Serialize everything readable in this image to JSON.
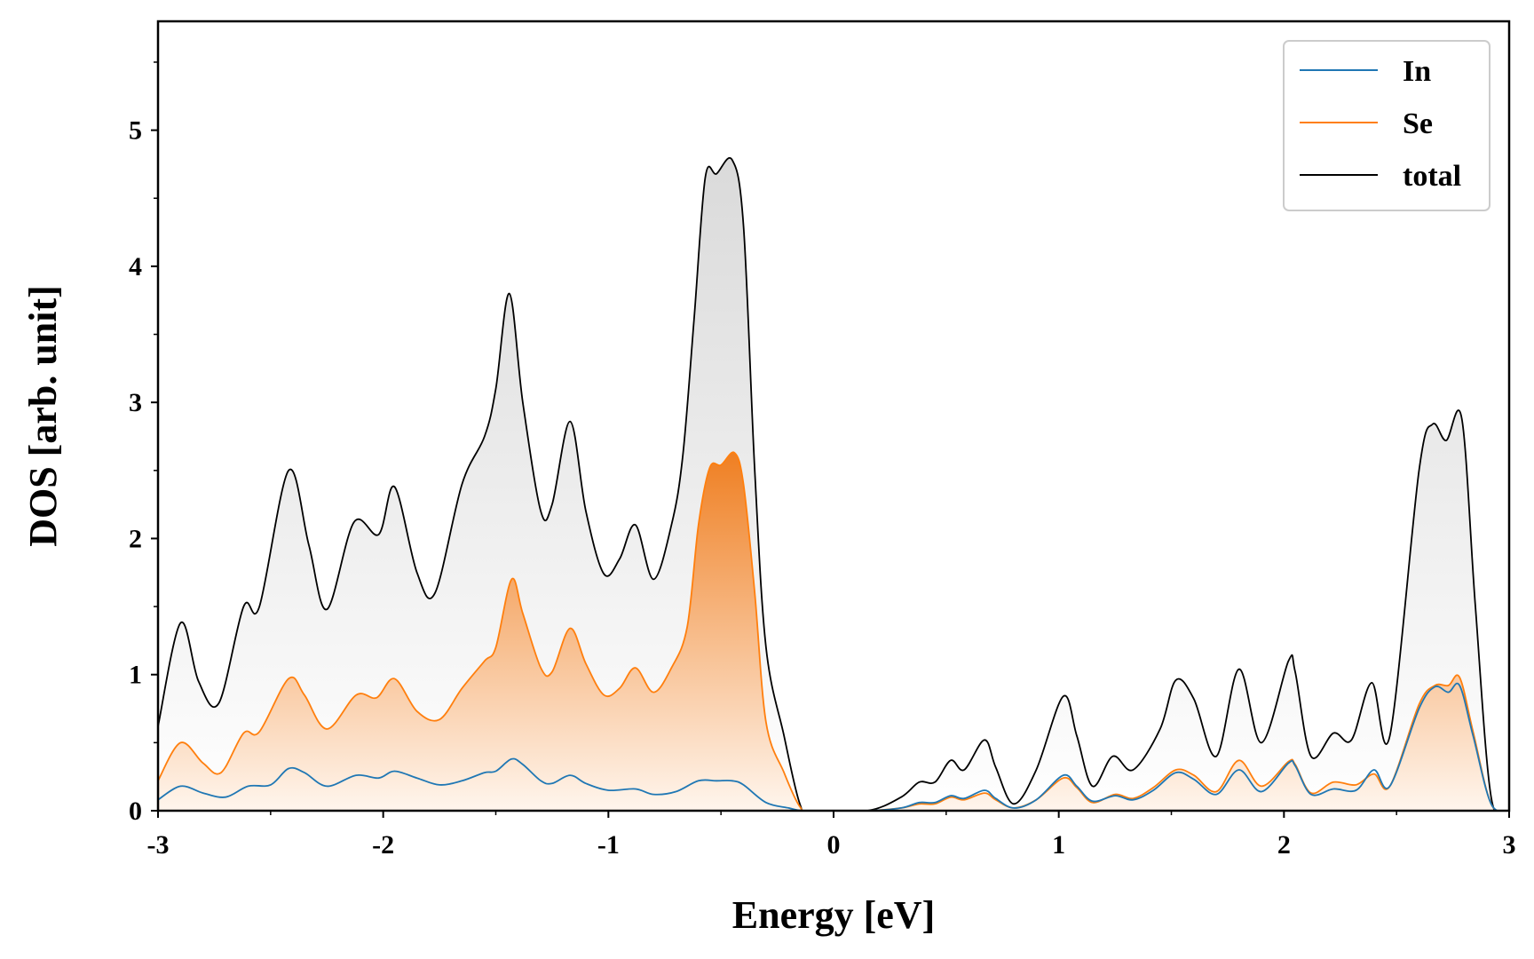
{
  "chart_data": {
    "type": "area",
    "title": "",
    "xlabel": "Energy [eV]",
    "ylabel": "DOS [arb. unit]",
    "xlim": [
      -3,
      3
    ],
    "ylim": [
      0,
      5.8
    ],
    "xticks": [
      -3,
      -2,
      -1,
      0,
      1,
      2,
      3
    ],
    "xtick_labels": [
      "-3",
      "-2",
      "-1",
      "0",
      "1",
      "2",
      "3"
    ],
    "yticks": [
      0,
      1,
      2,
      3,
      4,
      5
    ],
    "ytick_labels": [
      "0",
      "1",
      "2",
      "3",
      "4",
      "5"
    ],
    "grid": false,
    "legend_position": "top-right",
    "series": [
      {
        "name": "In",
        "color": "#1f77b4",
        "points": [
          [
            -3.0,
            0.08
          ],
          [
            -2.9,
            0.18
          ],
          [
            -2.8,
            0.13
          ],
          [
            -2.7,
            0.1
          ],
          [
            -2.6,
            0.18
          ],
          [
            -2.5,
            0.19
          ],
          [
            -2.42,
            0.31
          ],
          [
            -2.35,
            0.28
          ],
          [
            -2.25,
            0.18
          ],
          [
            -2.12,
            0.26
          ],
          [
            -2.02,
            0.24
          ],
          [
            -1.95,
            0.29
          ],
          [
            -1.85,
            0.24
          ],
          [
            -1.75,
            0.19
          ],
          [
            -1.65,
            0.22
          ],
          [
            -1.55,
            0.28
          ],
          [
            -1.5,
            0.29
          ],
          [
            -1.43,
            0.38
          ],
          [
            -1.38,
            0.34
          ],
          [
            -1.3,
            0.22
          ],
          [
            -1.25,
            0.2
          ],
          [
            -1.17,
            0.26
          ],
          [
            -1.1,
            0.2
          ],
          [
            -1.0,
            0.15
          ],
          [
            -0.88,
            0.16
          ],
          [
            -0.8,
            0.12
          ],
          [
            -0.7,
            0.14
          ],
          [
            -0.6,
            0.22
          ],
          [
            -0.52,
            0.22
          ],
          [
            -0.45,
            0.22
          ],
          [
            -0.4,
            0.19
          ],
          [
            -0.3,
            0.06
          ],
          [
            -0.2,
            0.02
          ],
          [
            -0.12,
            0.0
          ],
          [
            0.15,
            0.0
          ],
          [
            0.3,
            0.02
          ],
          [
            0.38,
            0.06
          ],
          [
            0.45,
            0.06
          ],
          [
            0.52,
            0.11
          ],
          [
            0.58,
            0.09
          ],
          [
            0.67,
            0.15
          ],
          [
            0.72,
            0.09
          ],
          [
            0.8,
            0.02
          ],
          [
            0.9,
            0.08
          ],
          [
            1.02,
            0.26
          ],
          [
            1.08,
            0.18
          ],
          [
            1.15,
            0.07
          ],
          [
            1.25,
            0.11
          ],
          [
            1.33,
            0.08
          ],
          [
            1.42,
            0.15
          ],
          [
            1.52,
            0.28
          ],
          [
            1.6,
            0.23
          ],
          [
            1.7,
            0.12
          ],
          [
            1.8,
            0.3
          ],
          [
            1.9,
            0.14
          ],
          [
            2.02,
            0.35
          ],
          [
            2.05,
            0.33
          ],
          [
            2.12,
            0.12
          ],
          [
            2.22,
            0.16
          ],
          [
            2.32,
            0.15
          ],
          [
            2.4,
            0.3
          ],
          [
            2.47,
            0.18
          ],
          [
            2.6,
            0.75
          ],
          [
            2.67,
            0.91
          ],
          [
            2.73,
            0.87
          ],
          [
            2.78,
            0.92
          ],
          [
            2.84,
            0.55
          ],
          [
            2.92,
            0.05
          ],
          [
            3.0,
            0.0
          ]
        ]
      },
      {
        "name": "Se",
        "color": "#ff7f0e",
        "points": [
          [
            -3.0,
            0.22
          ],
          [
            -2.9,
            0.5
          ],
          [
            -2.8,
            0.35
          ],
          [
            -2.72,
            0.28
          ],
          [
            -2.62,
            0.57
          ],
          [
            -2.55,
            0.58
          ],
          [
            -2.42,
            0.97
          ],
          [
            -2.35,
            0.85
          ],
          [
            -2.25,
            0.6
          ],
          [
            -2.12,
            0.85
          ],
          [
            -2.03,
            0.83
          ],
          [
            -1.95,
            0.97
          ],
          [
            -1.85,
            0.73
          ],
          [
            -1.75,
            0.67
          ],
          [
            -1.65,
            0.9
          ],
          [
            -1.55,
            1.1
          ],
          [
            -1.5,
            1.2
          ],
          [
            -1.43,
            1.7
          ],
          [
            -1.38,
            1.45
          ],
          [
            -1.3,
            1.05
          ],
          [
            -1.25,
            1.02
          ],
          [
            -1.17,
            1.34
          ],
          [
            -1.1,
            1.08
          ],
          [
            -1.02,
            0.85
          ],
          [
            -0.95,
            0.9
          ],
          [
            -0.88,
            1.05
          ],
          [
            -0.8,
            0.87
          ],
          [
            -0.72,
            1.05
          ],
          [
            -0.65,
            1.35
          ],
          [
            -0.6,
            2.1
          ],
          [
            -0.55,
            2.52
          ],
          [
            -0.5,
            2.54
          ],
          [
            -0.44,
            2.63
          ],
          [
            -0.4,
            2.4
          ],
          [
            -0.35,
            1.6
          ],
          [
            -0.3,
            0.65
          ],
          [
            -0.22,
            0.28
          ],
          [
            -0.15,
            0.03
          ],
          [
            -0.1,
            0.0
          ],
          [
            0.15,
            0.0
          ],
          [
            0.3,
            0.02
          ],
          [
            0.38,
            0.05
          ],
          [
            0.45,
            0.05
          ],
          [
            0.52,
            0.1
          ],
          [
            0.58,
            0.08
          ],
          [
            0.67,
            0.13
          ],
          [
            0.72,
            0.08
          ],
          [
            0.8,
            0.02
          ],
          [
            0.9,
            0.08
          ],
          [
            1.02,
            0.24
          ],
          [
            1.08,
            0.17
          ],
          [
            1.15,
            0.06
          ],
          [
            1.25,
            0.12
          ],
          [
            1.33,
            0.09
          ],
          [
            1.42,
            0.17
          ],
          [
            1.52,
            0.3
          ],
          [
            1.6,
            0.26
          ],
          [
            1.7,
            0.14
          ],
          [
            1.8,
            0.37
          ],
          [
            1.9,
            0.18
          ],
          [
            2.02,
            0.36
          ],
          [
            2.05,
            0.34
          ],
          [
            2.12,
            0.13
          ],
          [
            2.22,
            0.21
          ],
          [
            2.32,
            0.19
          ],
          [
            2.4,
            0.27
          ],
          [
            2.47,
            0.18
          ],
          [
            2.6,
            0.78
          ],
          [
            2.67,
            0.92
          ],
          [
            2.73,
            0.92
          ],
          [
            2.78,
            0.98
          ],
          [
            2.84,
            0.58
          ],
          [
            2.92,
            0.05
          ],
          [
            3.0,
            0.0
          ]
        ]
      },
      {
        "name": "total",
        "color": "#000000",
        "points": [
          [
            -3.0,
            0.62
          ],
          [
            -2.9,
            1.38
          ],
          [
            -2.82,
            0.95
          ],
          [
            -2.73,
            0.79
          ],
          [
            -2.62,
            1.5
          ],
          [
            -2.55,
            1.5
          ],
          [
            -2.42,
            2.5
          ],
          [
            -2.33,
            1.95
          ],
          [
            -2.25,
            1.48
          ],
          [
            -2.13,
            2.12
          ],
          [
            -2.02,
            2.03
          ],
          [
            -1.95,
            2.38
          ],
          [
            -1.85,
            1.75
          ],
          [
            -1.77,
            1.6
          ],
          [
            -1.65,
            2.4
          ],
          [
            -1.55,
            2.75
          ],
          [
            -1.5,
            3.1
          ],
          [
            -1.44,
            3.8
          ],
          [
            -1.38,
            3.0
          ],
          [
            -1.3,
            2.2
          ],
          [
            -1.25,
            2.25
          ],
          [
            -1.17,
            2.86
          ],
          [
            -1.1,
            2.2
          ],
          [
            -1.02,
            1.74
          ],
          [
            -0.95,
            1.85
          ],
          [
            -0.88,
            2.1
          ],
          [
            -0.8,
            1.7
          ],
          [
            -0.72,
            2.1
          ],
          [
            -0.67,
            2.6
          ],
          [
            -0.62,
            3.6
          ],
          [
            -0.57,
            4.65
          ],
          [
            -0.52,
            4.68
          ],
          [
            -0.45,
            4.78
          ],
          [
            -0.4,
            4.3
          ],
          [
            -0.35,
            2.5
          ],
          [
            -0.3,
            1.2
          ],
          [
            -0.22,
            0.55
          ],
          [
            -0.15,
            0.05
          ],
          [
            -0.1,
            0.0
          ],
          [
            0.15,
            0.0
          ],
          [
            0.3,
            0.1
          ],
          [
            0.38,
            0.21
          ],
          [
            0.45,
            0.21
          ],
          [
            0.52,
            0.37
          ],
          [
            0.58,
            0.3
          ],
          [
            0.67,
            0.52
          ],
          [
            0.72,
            0.32
          ],
          [
            0.8,
            0.05
          ],
          [
            0.9,
            0.3
          ],
          [
            1.02,
            0.84
          ],
          [
            1.08,
            0.55
          ],
          [
            1.15,
            0.18
          ],
          [
            1.24,
            0.4
          ],
          [
            1.33,
            0.3
          ],
          [
            1.45,
            0.6
          ],
          [
            1.52,
            0.96
          ],
          [
            1.6,
            0.82
          ],
          [
            1.7,
            0.4
          ],
          [
            1.8,
            1.04
          ],
          [
            1.9,
            0.5
          ],
          [
            2.02,
            1.1
          ],
          [
            2.05,
            1.02
          ],
          [
            2.12,
            0.4
          ],
          [
            2.22,
            0.57
          ],
          [
            2.3,
            0.52
          ],
          [
            2.39,
            0.94
          ],
          [
            2.47,
            0.55
          ],
          [
            2.6,
            2.5
          ],
          [
            2.66,
            2.84
          ],
          [
            2.72,
            2.72
          ],
          [
            2.79,
            2.88
          ],
          [
            2.85,
            1.5
          ],
          [
            2.92,
            0.1
          ],
          [
            3.0,
            0.0
          ]
        ]
      }
    ]
  }
}
